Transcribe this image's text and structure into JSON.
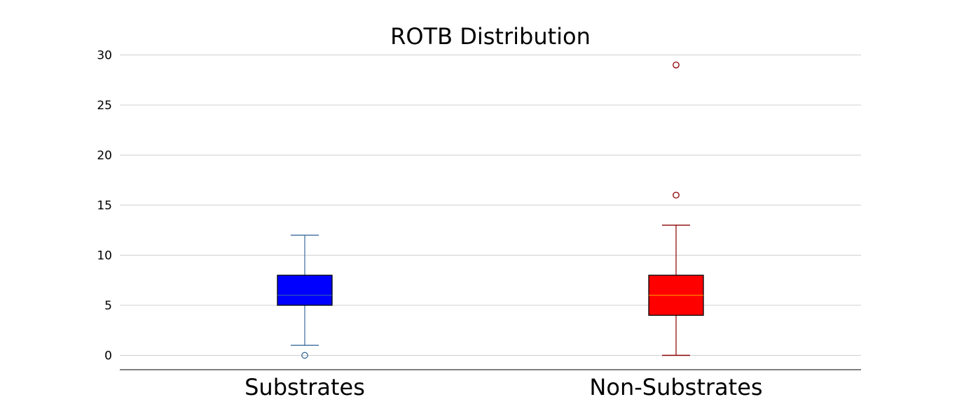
{
  "chart_data": {
    "type": "box",
    "title": "ROTB Distribution",
    "xlabel": "",
    "ylabel": "",
    "categories": [
      "Substrates",
      "Non-Substrates"
    ],
    "ylim": [
      -1.5,
      30
    ],
    "yticks": [
      0,
      5,
      10,
      15,
      20,
      25,
      30
    ],
    "grid": {
      "y": true,
      "x": false
    },
    "boxes": [
      {
        "category": "Substrates",
        "whisker_low": 1,
        "q1": 5,
        "median": 6,
        "q3": 8,
        "whisker_high": 12,
        "outliers": [
          0
        ],
        "fill_color": "#0000ff",
        "line_color": "#3b6a9a",
        "median_color": "#3b6a9a"
      },
      {
        "category": "Non-Substrates",
        "whisker_low": 0,
        "q1": 4,
        "median": 6,
        "q3": 8,
        "whisker_high": 13,
        "outliers": [
          16,
          29
        ],
        "fill_color": "#ff0000",
        "line_color": "#8b0000",
        "median_color": "#ffa500"
      }
    ]
  }
}
